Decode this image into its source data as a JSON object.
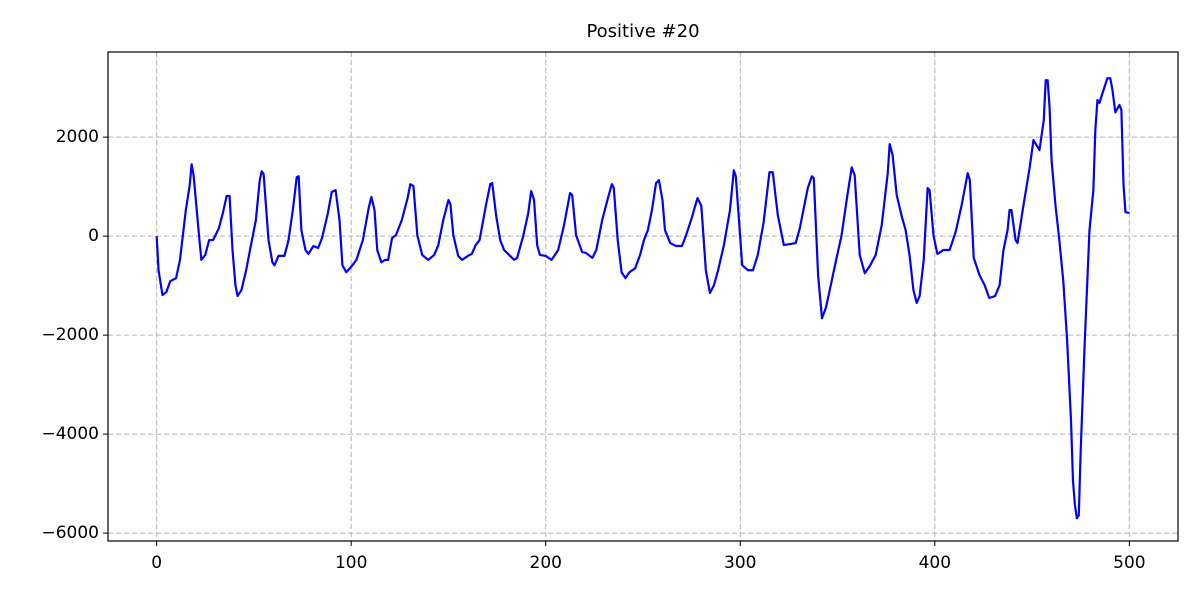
{
  "chart_data": {
    "type": "line",
    "title": "Positive #20",
    "x": [
      0,
      1,
      3,
      5,
      7,
      10,
      12,
      15,
      17,
      18,
      19,
      22,
      23,
      25,
      27,
      29,
      32,
      34,
      36,
      37.5,
      39,
      40.5,
      41.6,
      43.6,
      46,
      48,
      51,
      53,
      54,
      55,
      57.5,
      59.5,
      60.6,
      62.6,
      65.7,
      67.8,
      70,
      72,
      73,
      74.4,
      76.5,
      78,
      80.6,
      83,
      85,
      88,
      90,
      92,
      94,
      95.5,
      97.5,
      100.6,
      102.7,
      106,
      109,
      110.4,
      112,
      113.4,
      115.5,
      117.5,
      119,
      121,
      123,
      126,
      129,
      130.4,
      132,
      134,
      136.5,
      139.6,
      142.7,
      144.8,
      147.3,
      150,
      151,
      152.5,
      155,
      157,
      160,
      162,
      164,
      166,
      169.4,
      171.5,
      172.5,
      174.5,
      176.6,
      178.6,
      181.7,
      183.8,
      185.3,
      188.4,
      191,
      192.5,
      194,
      195.6,
      197,
      200,
      203,
      206.4,
      209.4,
      212.5,
      213.6,
      215.6,
      218.7,
      220.7,
      224,
      226,
      229,
      232,
      234,
      235,
      237,
      239,
      241,
      243,
      246,
      248.5,
      250.5,
      252.5,
      254.6,
      256.7,
      258.2,
      260,
      261.3,
      264,
      267,
      270,
      272,
      275,
      278,
      280,
      282.3,
      284.4,
      286.5,
      288.6,
      291.6,
      294.7,
      296.7,
      297.7,
      301,
      304,
      306.5,
      309,
      312,
      315,
      316.7,
      319.3,
      322.4,
      325.5,
      328.5,
      330.6,
      334.7,
      336.8,
      337.8,
      340,
      342,
      344,
      346,
      349,
      352,
      355,
      357.3,
      358.8,
      361.4,
      364,
      366.5,
      369.6,
      372.7,
      375.8,
      376.8,
      378.3,
      380.4,
      383,
      385,
      387,
      389,
      390.7,
      392.2,
      394.3,
      396.3,
      397.3,
      399.3,
      401.3,
      404.5,
      407.6,
      410.7,
      413.8,
      416.9,
      418,
      420,
      423,
      425.6,
      428,
      431,
      433.3,
      435.3,
      437.4,
      438.4,
      439.4,
      441.5,
      442.5,
      445.6,
      448.7,
      450.7,
      453.8,
      456,
      457,
      458,
      459,
      460,
      462,
      464,
      466,
      468,
      470,
      471,
      472,
      473,
      474,
      475,
      477,
      479.5,
      481.5,
      482.5,
      483.6,
      484.6,
      486.7,
      488.7,
      490.2,
      491.3,
      492.8,
      494.9,
      495.9,
      497,
      498,
      500
    ],
    "series": [
      {
        "color": "#0000ff",
        "values": [
          0,
          -690,
          -1190,
          -1130,
          -910,
          -850,
          -480,
          525,
          1030,
          1450,
          1230,
          -80,
          -480,
          -380,
          -80,
          -80,
          160,
          460,
          810,
          810,
          -280,
          -990,
          -1210,
          -1090,
          -690,
          -280,
          320,
          1130,
          1310,
          1250,
          -80,
          -530,
          -590,
          -400,
          -400,
          -80,
          525,
          1190,
          1210,
          120,
          -280,
          -360,
          -200,
          -240,
          -40,
          460,
          890,
          930,
          320,
          -590,
          -730,
          -590,
          -480,
          -80,
          570,
          790,
          525,
          -280,
          -530,
          -480,
          -480,
          -40,
          20,
          320,
          770,
          1050,
          1010,
          20,
          -380,
          -480,
          -380,
          -180,
          320,
          730,
          650,
          20,
          -400,
          -480,
          -400,
          -360,
          -180,
          -80,
          650,
          1050,
          1070,
          420,
          -80,
          -280,
          -400,
          -480,
          -440,
          0,
          460,
          910,
          730,
          -180,
          -380,
          -400,
          -480,
          -280,
          220,
          870,
          830,
          20,
          -320,
          -340,
          -440,
          -280,
          320,
          770,
          1050,
          970,
          -80,
          -730,
          -850,
          -730,
          -650,
          -380,
          -80,
          120,
          525,
          1070,
          1130,
          730,
          120,
          -140,
          -200,
          -200,
          0,
          360,
          770,
          610,
          -690,
          -1150,
          -990,
          -690,
          -180,
          525,
          1330,
          1210,
          -590,
          -690,
          -690,
          -380,
          280,
          1290,
          1290,
          420,
          -180,
          -160,
          -140,
          160,
          970,
          1210,
          1170,
          -790,
          -1660,
          -1450,
          -1090,
          -530,
          0,
          810,
          1390,
          1230,
          -380,
          -750,
          -610,
          -380,
          220,
          1270,
          1860,
          1640,
          830,
          400,
          120,
          -380,
          -1090,
          -1350,
          -1210,
          -480,
          970,
          930,
          20,
          -360,
          -280,
          -280,
          80,
          630,
          1270,
          1130,
          -440,
          -790,
          -990,
          -1250,
          -1210,
          -990,
          -280,
          120,
          525,
          525,
          -80,
          -140,
          630,
          1370,
          1940,
          1740,
          2340,
          3150,
          3150,
          2590,
          1540,
          630,
          -80,
          -890,
          -2100,
          -3720,
          -4930,
          -5430,
          -5700,
          -5640,
          -4320,
          -2200,
          120,
          930,
          2140,
          2750,
          2690,
          2950,
          3190,
          3190,
          2950,
          2500,
          2650,
          2550,
          1030,
          485,
          465
        ]
      }
    ],
    "xlim": [
      -25,
      525
    ],
    "xticks": [
      0,
      100,
      200,
      300,
      400,
      500
    ],
    "ylim": [
      -6160,
      3720
    ],
    "yticks": [
      {
        "value": -6000,
        "label": "−6000"
      },
      {
        "value": -4000,
        "label": "−4000"
      },
      {
        "value": -2000,
        "label": "−2000"
      },
      0,
      2000
    ],
    "grid": true
  }
}
